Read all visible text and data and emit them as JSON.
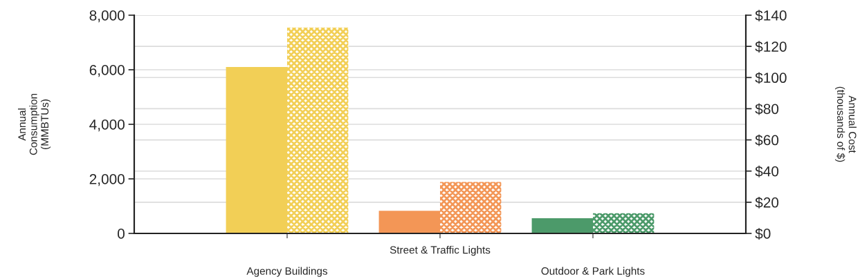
{
  "chart_data": {
    "type": "bar",
    "categories": [
      "Agency Buildings",
      "Street & Traffic Lights",
      "Outdoor & Park Lights"
    ],
    "ylabel": "Annual\nConsumption\n(MMBTUs)",
    "y2label": "Annual Cost\n(thousands of $)",
    "series": [
      {
        "colors": [
          "#f2cf56",
          "#f39656",
          "#4c9a6a"
        ],
        "values": [
          6100,
          830,
          560
        ]
      },
      {
        "colors": [
          "#f2cf56",
          "#f39656",
          "#4c9a6a"
        ],
        "values": [
          132,
          33,
          13
        ],
        "axis": "y2"
      }
    ],
    "ylim": [
      0,
      8000
    ],
    "yticks": [
      0,
      {
        "value": 2000,
        "label": "2,000"
      },
      {
        "value": 4000,
        "label": "4,000"
      },
      {
        "value": 6000,
        "label": "6,000"
      },
      {
        "value": 8000,
        "label": "8,000"
      }
    ],
    "y2lim": [
      0,
      140
    ],
    "y2ticks": [
      {
        "value": 0,
        "label": "$0"
      },
      {
        "value": 20,
        "label": "$20"
      },
      {
        "value": 40,
        "label": "$40"
      },
      {
        "value": 60,
        "label": "$60"
      },
      {
        "value": 80,
        "label": "$80"
      },
      {
        "value": 100,
        "label": "$100"
      },
      {
        "value": 120,
        "label": "$120"
      },
      {
        "value": 140,
        "label": "$140"
      }
    ],
    "grid": "y",
    "legend": false
  }
}
